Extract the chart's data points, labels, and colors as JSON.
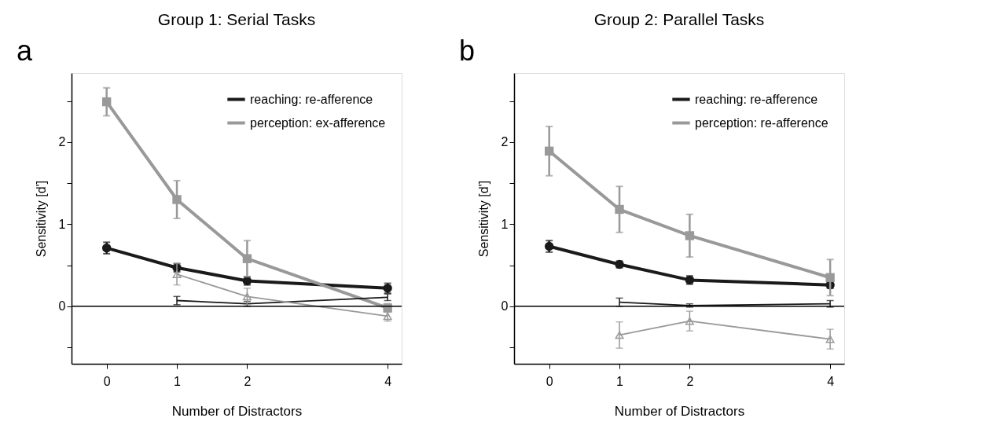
{
  "chart_data": [
    {
      "type": "line",
      "title": "Group 1: Serial Tasks",
      "xlabel": "Number of Distractors",
      "ylabel": "Sensitivity [d']",
      "annotations": [
        "a"
      ],
      "xlim": [
        -0.5,
        4.2
      ],
      "ylim": [
        -0.7,
        2.84
      ],
      "xticks": [
        0,
        1,
        2,
        4
      ],
      "yticks": [
        {
          "value": -0.5,
          "label": null
        },
        0,
        {
          "value": 0.5,
          "label": null
        },
        1,
        {
          "value": 1.5,
          "label": null
        },
        2,
        {
          "value": 2.5,
          "label": null
        }
      ],
      "grid": false,
      "legend": "top right",
      "ref_lines": [
        {
          "axis": "y",
          "value": 0,
          "color": "#000000"
        }
      ],
      "series": [
        {
          "name": "reaching: re-afference",
          "color": "#1a1a1a",
          "marker": "circle",
          "x": [
            0,
            1,
            2,
            4
          ],
          "values": [
            0.71,
            0.47,
            0.31,
            0.22
          ],
          "errors": [
            0.07,
            0.05,
            0.05,
            0.06
          ]
        },
        {
          "name": "perception: ex-afference",
          "color": "#999999",
          "marker": "square",
          "x": [
            0,
            1,
            2,
            4
          ],
          "values": [
            2.49,
            1.3,
            0.58,
            -0.02
          ],
          "errors": [
            0.17,
            0.23,
            0.22,
            0.05
          ]
        },
        {
          "color": "#1a1a1a",
          "marker": "none",
          "x": [
            1,
            2,
            4
          ],
          "values": [
            0.07,
            0.03,
            0.11
          ],
          "errors": [
            0.05,
            0.03,
            0.04
          ]
        },
        {
          "color": "#999999",
          "marker": "triangle",
          "x": [
            1,
            2,
            4
          ],
          "values": [
            0.39,
            0.12,
            -0.12
          ],
          "errors": [
            0.13,
            0.1,
            0.06
          ]
        }
      ]
    },
    {
      "type": "line",
      "title": "Group 2: Parallel Tasks",
      "xlabel": "Number of Distractors",
      "ylabel": "Sensitivity [d']",
      "annotations": [
        "b"
      ],
      "xlim": [
        -0.5,
        4.2
      ],
      "ylim": [
        -0.7,
        2.84
      ],
      "xticks": [
        0,
        1,
        2,
        4
      ],
      "yticks": [
        {
          "value": -0.5,
          "label": null
        },
        0,
        {
          "value": 0.5,
          "label": null
        },
        1,
        {
          "value": 1.5,
          "label": null
        },
        2,
        {
          "value": 2.5,
          "label": null
        }
      ],
      "grid": false,
      "legend": "top right",
      "ref_lines": [
        {
          "axis": "y",
          "value": 0,
          "color": "#000000"
        }
      ],
      "series": [
        {
          "name": "reaching: re-afference",
          "color": "#1a1a1a",
          "marker": "circle",
          "x": [
            0,
            1,
            2,
            4
          ],
          "values": [
            0.73,
            0.51,
            0.32,
            0.26
          ],
          "errors": [
            0.07,
            0.04,
            0.05,
            0.04
          ]
        },
        {
          "name": "perception: re-afference",
          "color": "#999999",
          "marker": "square",
          "x": [
            0,
            1,
            2,
            4
          ],
          "values": [
            1.89,
            1.18,
            0.86,
            0.35
          ],
          "errors": [
            0.3,
            0.28,
            0.26,
            0.22
          ]
        },
        {
          "color": "#1a1a1a",
          "marker": "none",
          "x": [
            1,
            2,
            4
          ],
          "values": [
            0.05,
            0.01,
            0.03
          ],
          "errors": [
            0.05,
            0.02,
            0.04
          ]
        },
        {
          "color": "#999999",
          "marker": "triangle",
          "x": [
            1,
            2,
            4
          ],
          "values": [
            -0.35,
            -0.18,
            -0.4
          ],
          "errors": [
            0.16,
            0.12,
            0.12
          ]
        }
      ]
    }
  ]
}
